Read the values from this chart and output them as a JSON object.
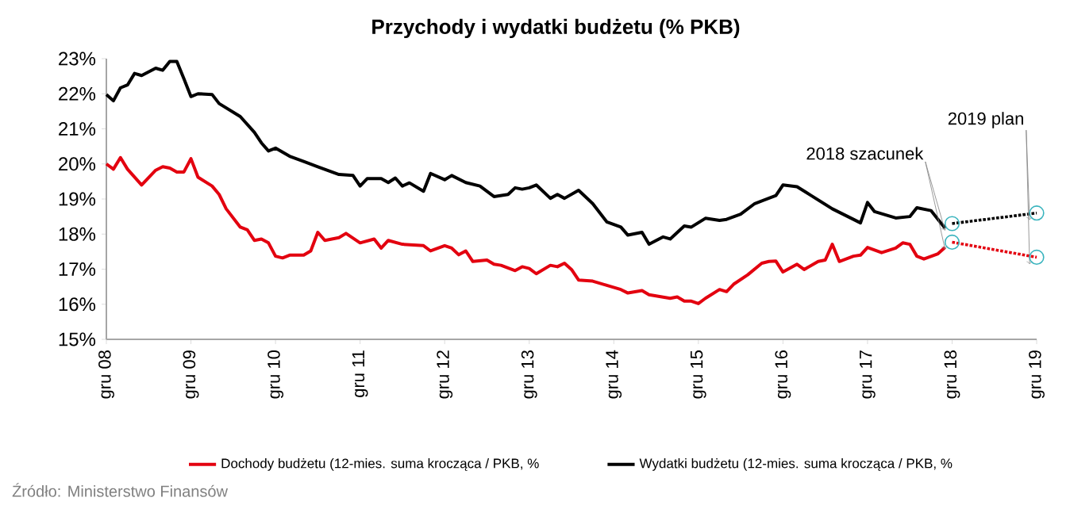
{
  "chart_data": {
    "type": "line",
    "title": "Przychody i wydatki budżetu (% PKB)",
    "xlim": [
      "2008-12",
      "2019-12"
    ],
    "xticks": [
      {
        "value": "2008-12",
        "label": "gru 08"
      },
      {
        "value": "2009-12",
        "label": "gru 09"
      },
      {
        "value": "2010-12",
        "label": "gru 10"
      },
      {
        "value": "2011-12",
        "label": "gru 11"
      },
      {
        "value": "2012-12",
        "label": "gru 12"
      },
      {
        "value": "2013-12",
        "label": "gru 13"
      },
      {
        "value": "2014-12",
        "label": "gru 14"
      },
      {
        "value": "2015-12",
        "label": "gru 15"
      },
      {
        "value": "2016-12",
        "label": "gru 16"
      },
      {
        "value": "2017-12",
        "label": "gru 17"
      },
      {
        "value": "2018-12",
        "label": "gru 18"
      },
      {
        "value": "2019-12",
        "label": "gru 19"
      }
    ],
    "ylim": [
      15,
      23
    ],
    "yticks": [
      {
        "value": 15,
        "label": "15%"
      },
      {
        "value": 16,
        "label": "16%"
      },
      {
        "value": 17,
        "label": "17%"
      },
      {
        "value": 18,
        "label": "18%"
      },
      {
        "value": 19,
        "label": "19%"
      },
      {
        "value": 20,
        "label": "20%"
      },
      {
        "value": 21,
        "label": "21%"
      },
      {
        "value": 22,
        "label": "22%"
      },
      {
        "value": 23,
        "label": "23%"
      }
    ],
    "legend": "bottom",
    "grid": false,
    "marker": "none",
    "line_style": "solid",
    "series": [
      {
        "name": "Dochody budżetu (12-mies. suma krocząca / PKB, %",
        "color": "#e3000f",
        "x": [
          "2008-12",
          "2009-01",
          "2009-02",
          "2009-03",
          "2009-05",
          "2009-07",
          "2009-08",
          "2009-09",
          "2009-10",
          "2009-11",
          "2009-12",
          "2010-01",
          "2010-03",
          "2010-04",
          "2010-05",
          "2010-07",
          "2010-08",
          "2010-09",
          "2010-10",
          "2010-11",
          "2010-12",
          "2011-01",
          "2011-02",
          "2011-04",
          "2011-05",
          "2011-06",
          "2011-07",
          "2011-09",
          "2011-10",
          "2011-12",
          "2012-02",
          "2012-03",
          "2012-04",
          "2012-06",
          "2012-09",
          "2012-10",
          "2012-12",
          "2013-01",
          "2013-02",
          "2013-03",
          "2013-04",
          "2013-06",
          "2013-07",
          "2013-08",
          "2013-10",
          "2013-11",
          "2013-12",
          "2014-01",
          "2014-03",
          "2014-04",
          "2014-05",
          "2014-06",
          "2014-07",
          "2014-09",
          "2014-11",
          "2015-01",
          "2015-02",
          "2015-04",
          "2015-05",
          "2015-08",
          "2015-09",
          "2015-10",
          "2015-11",
          "2015-12",
          "2016-01",
          "2016-03",
          "2016-04",
          "2016-05",
          "2016-07",
          "2016-09",
          "2016-10",
          "2016-11",
          "2016-12",
          "2017-02",
          "2017-03",
          "2017-05",
          "2017-06",
          "2017-07",
          "2017-08",
          "2017-10",
          "2017-11",
          "2017-12",
          "2018-02",
          "2018-04",
          "2018-05",
          "2018-06",
          "2018-07",
          "2018-08",
          "2018-10",
          "2018-11"
        ],
        "values": [
          20.0,
          19.85,
          20.18,
          19.85,
          19.4,
          19.82,
          19.92,
          19.88,
          19.77,
          19.77,
          20.15,
          19.62,
          19.37,
          19.13,
          18.72,
          18.2,
          18.12,
          17.82,
          17.86,
          17.75,
          17.37,
          17.32,
          17.4,
          17.4,
          17.52,
          18.05,
          17.82,
          17.9,
          18.02,
          17.75,
          17.86,
          17.6,
          17.82,
          17.71,
          17.67,
          17.52,
          17.67,
          17.6,
          17.41,
          17.52,
          17.22,
          17.26,
          17.14,
          17.11,
          16.96,
          17.07,
          17.02,
          16.87,
          17.11,
          17.07,
          17.17,
          16.99,
          16.69,
          16.66,
          16.54,
          16.42,
          16.32,
          16.39,
          16.27,
          16.17,
          16.21,
          16.09,
          16.09,
          16.02,
          16.17,
          16.42,
          16.36,
          16.57,
          16.84,
          17.17,
          17.22,
          17.23,
          16.92,
          17.14,
          16.99,
          17.22,
          17.26,
          17.71,
          17.22,
          17.37,
          17.4,
          17.62,
          17.47,
          17.6,
          17.75,
          17.71,
          17.37,
          17.29,
          17.44,
          17.62
        ]
      },
      {
        "name": "Wydatki budżetu (12-mies. suma krocząca / PKB, %",
        "color": "#000000",
        "x": [
          "2008-12",
          "2009-01",
          "2009-02",
          "2009-03",
          "2009-04",
          "2009-05",
          "2009-07",
          "2009-08",
          "2009-09",
          "2009-10",
          "2009-11",
          "2009-12",
          "2010-01",
          "2010-03",
          "2010-04",
          "2010-07",
          "2010-09",
          "2010-10",
          "2010-11",
          "2010-12",
          "2011-02",
          "2011-04",
          "2011-06",
          "2011-09",
          "2011-11",
          "2011-12",
          "2012-01",
          "2012-03",
          "2012-04",
          "2012-05",
          "2012-06",
          "2012-07",
          "2012-09",
          "2012-10",
          "2012-12",
          "2013-01",
          "2013-03",
          "2013-05",
          "2013-07",
          "2013-09",
          "2013-10",
          "2013-11",
          "2013-12",
          "2014-01",
          "2014-03",
          "2014-04",
          "2014-05",
          "2014-07",
          "2014-09",
          "2014-11",
          "2015-01",
          "2015-02",
          "2015-04",
          "2015-05",
          "2015-07",
          "2015-08",
          "2015-10",
          "2015-11",
          "2016-01",
          "2016-03",
          "2016-04",
          "2016-06",
          "2016-08",
          "2016-11",
          "2016-12",
          "2017-02",
          "2017-04",
          "2017-07",
          "2017-11",
          "2017-12",
          "2018-01",
          "2018-04",
          "2018-06",
          "2018-07",
          "2018-09",
          "2018-10",
          "2018-11"
        ],
        "values": [
          21.98,
          21.8,
          22.17,
          22.25,
          22.58,
          22.52,
          22.73,
          22.67,
          22.92,
          22.92,
          22.43,
          21.92,
          22.0,
          21.98,
          21.72,
          21.35,
          20.9,
          20.6,
          20.37,
          20.45,
          20.22,
          20.07,
          19.92,
          19.7,
          19.67,
          19.37,
          19.58,
          19.58,
          19.47,
          19.6,
          19.37,
          19.46,
          19.22,
          19.73,
          19.55,
          19.67,
          19.47,
          19.37,
          19.07,
          19.13,
          19.32,
          19.28,
          19.32,
          19.4,
          19.02,
          19.13,
          19.02,
          19.25,
          18.87,
          18.35,
          18.2,
          17.97,
          18.05,
          17.71,
          17.92,
          17.86,
          18.23,
          18.2,
          18.45,
          18.39,
          18.42,
          18.57,
          18.87,
          19.1,
          19.4,
          19.35,
          19.1,
          18.72,
          18.32,
          18.9,
          18.64,
          18.46,
          18.5,
          18.75,
          18.67,
          18.42,
          18.17
        ]
      },
      {
        "color": "#e3000f",
        "x": [
          "2018-12",
          "2019-12"
        ],
        "values": [
          17.77,
          17.34
        ],
        "line_style": "dotted",
        "marker": "circle"
      },
      {
        "color": "#000000",
        "x": [
          "2018-12",
          "2019-12"
        ],
        "values": [
          18.3,
          18.6
        ],
        "line_style": "dotted",
        "marker": "circle"
      }
    ],
    "annotations": [
      {
        "text": "2018 szacunek",
        "x": "2018-12",
        "y": 18.3
      },
      {
        "text": "2019 plan",
        "x": "2019-12",
        "y": 18.6
      },
      "Źródło: Ministerstwo Finansów"
    ]
  }
}
